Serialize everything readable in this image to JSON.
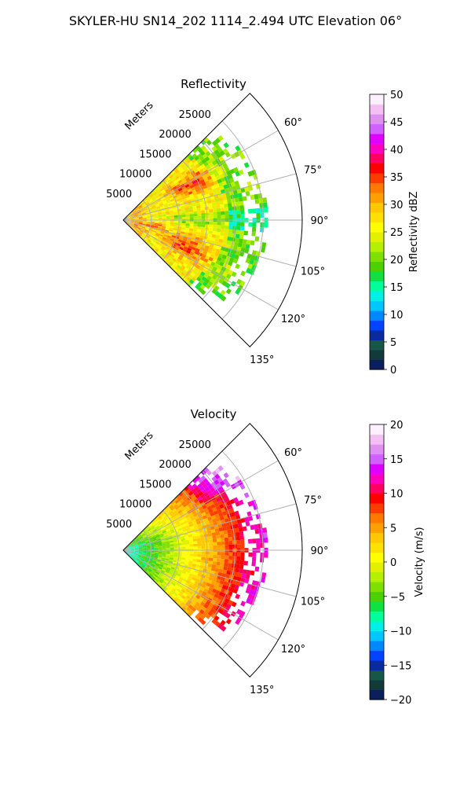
{
  "figure_title": "SKYLER-HU  SN14_202  1114_2.494 UTC Elevation 06°",
  "chart_data": [
    {
      "type": "heatmap",
      "subtype": "polar-sector (PPI radar scan)",
      "title": "Reflectivity",
      "radial_axis_label": "Meters",
      "range_ticks": [
        5000,
        10000,
        15000,
        20000,
        25000
      ],
      "range_tick_labels": [
        "5000",
        "10000",
        "15000",
        "20000",
        "25000"
      ],
      "angle_range_deg": [
        45,
        135
      ],
      "angle_ticks_deg": [
        60,
        75,
        90,
        105,
        120,
        135
      ],
      "angle_tick_labels": [
        "60°",
        "75°",
        "90°",
        "105°",
        "120°",
        "135°"
      ],
      "max_range": 32000,
      "grid": true,
      "colorbar": {
        "label": "Reflectivity dBZ",
        "range": [
          0,
          50
        ],
        "ticks": [
          0,
          5,
          10,
          15,
          20,
          25,
          30,
          35,
          40,
          45,
          50
        ],
        "tick_labels": [
          "0",
          "5",
          "10",
          "15",
          "20",
          "25",
          "30",
          "35",
          "40",
          "45",
          "50"
        ],
        "colors": [
          "#0b1f5c",
          "#123a3a",
          "#17574a",
          "#0a2aa0",
          "#0044ff",
          "#0088ff",
          "#00c8ff",
          "#00f0e6",
          "#00ff99",
          "#10e040",
          "#4cd000",
          "#7ee000",
          "#b4f000",
          "#e0f000",
          "#ffff00",
          "#ffe000",
          "#ffc800",
          "#ffa000",
          "#ff7800",
          "#ff3c00",
          "#ff0000",
          "#ff0060",
          "#ff00c0",
          "#e000ff",
          "#d060ff",
          "#e090f0",
          "#f4c0f4",
          "#fff0ff"
        ]
      },
      "field_summary": "Echo sector covering about 5000-22000 m: mostly 22-30 dBZ (yellow/green) with 33-38 dBZ cores (red) near 60-70° and 100-125°, weaker 15-20 dBZ fringe at the outer edge and near 90°."
    },
    {
      "type": "heatmap",
      "subtype": "polar-sector (PPI radar scan)",
      "title": "Velocity",
      "radial_axis_label": "Meters",
      "range_ticks": [
        5000,
        10000,
        15000,
        20000,
        25000
      ],
      "range_tick_labels": [
        "5000",
        "10000",
        "15000",
        "20000",
        "25000"
      ],
      "angle_range_deg": [
        45,
        135
      ],
      "angle_ticks_deg": [
        60,
        75,
        90,
        105,
        120,
        135
      ],
      "angle_tick_labels": [
        "60°",
        "75°",
        "90°",
        "105°",
        "120°",
        "135°"
      ],
      "max_range": 32000,
      "grid": true,
      "colorbar": {
        "label": "Velocity (m/s)",
        "range": [
          -20,
          20
        ],
        "ticks": [
          -20,
          -15,
          -10,
          -5,
          0,
          5,
          10,
          15,
          20
        ],
        "tick_labels": [
          "−20",
          "−15",
          "−10",
          "−5",
          "0",
          "5",
          "10",
          "15",
          "20"
        ],
        "colors": [
          "#0b1f5c",
          "#123a3a",
          "#17574a",
          "#0a2aa0",
          "#0044ff",
          "#0088ff",
          "#00c8ff",
          "#00f0e6",
          "#00ff99",
          "#10e040",
          "#4cd000",
          "#7ee000",
          "#b4f000",
          "#e0f000",
          "#ffff00",
          "#ffe000",
          "#ffc800",
          "#ffa000",
          "#ff7800",
          "#ff3c00",
          "#ff0000",
          "#ff0060",
          "#ff00c0",
          "#e000ff",
          "#d060ff",
          "#e090f0",
          "#f4c0f4",
          "#fff0ff"
        ]
      },
      "field_summary": "Velocities increase with range: about -10 to -8 m/s (cyan-green) near the radar, about 0 m/s (yellow) mid-range, +5 to +10 m/s (orange/red) beyond about 15000 m, up to about +12 m/s (magenta) near 50-60°."
    }
  ]
}
